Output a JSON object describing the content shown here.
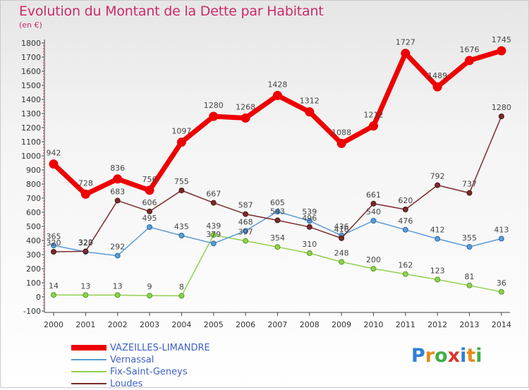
{
  "title": "Evolution du Montant de la Dette par Habitant",
  "subtitle": "(en €)",
  "logo": {
    "text": "Proxiti",
    "colors": [
      "#2f7fd6",
      "#e88a1a",
      "#3fae49",
      "#d8392b",
      "#2f7fd6",
      "#e88a1a",
      "#3fae49"
    ]
  },
  "chart_data": {
    "type": "line",
    "title": "Evolution du Montant de la Dette par Habitant",
    "subtitle": "(en €)",
    "x": [
      "2000",
      "2001",
      "2002",
      "2003",
      "2004",
      "2005",
      "2006",
      "2007",
      "2008",
      "2009",
      "2010",
      "2011",
      "2012",
      "2013",
      "2014"
    ],
    "yticks": [
      "-100",
      "0",
      "100",
      "200",
      "300",
      "400",
      "500",
      "600",
      "700",
      "800",
      "900",
      "1000",
      "1100",
      "1200",
      "1300",
      "1400",
      "1500",
      "1600",
      "1700",
      "1800"
    ],
    "ylim": [
      -100,
      1800
    ],
    "grid": false,
    "legend": "bottom-left",
    "series": [
      {
        "name": "VAZEILLES-LIMANDRE",
        "color": "#ee0000",
        "values": [
          942,
          728,
          836,
          756,
          1097,
          1280,
          1268,
          1428,
          1312,
          1088,
          1212,
          1727,
          1489,
          1676,
          1745
        ],
        "labels": [
          "942",
          "728",
          "836",
          "756",
          "1097",
          "1280",
          "1268",
          "1428",
          "1312",
          "1088",
          "1212",
          "1727",
          "1489",
          "1676",
          "1745"
        ]
      },
      {
        "name": "Vernassal",
        "color": "#5b9bd5",
        "values": [
          365,
          320,
          292,
          495,
          435,
          379,
          468,
          605,
          539,
          436,
          540,
          476,
          412,
          355,
          413
        ],
        "labels": [
          "365",
          "320",
          "292",
          "495",
          "435",
          "379",
          "468",
          "605",
          "539",
          "436",
          "540",
          "476",
          "412",
          "355",
          "413"
        ]
      },
      {
        "name": "Fix-Saint-Geneys",
        "color": "#8fd14f",
        "values": [
          14,
          13,
          13,
          9,
          8,
          439,
          397,
          354,
          310,
          248,
          200,
          162,
          123,
          81,
          36
        ],
        "labels": [
          "14",
          "13",
          "13",
          "9",
          "8",
          "439",
          "397",
          "354",
          "310",
          "248",
          "200",
          "162",
          "123",
          "81",
          "36"
        ]
      },
      {
        "name": "Loudes",
        "color": "#7a2b2b",
        "values": [
          320,
          323,
          683,
          606,
          755,
          667,
          587,
          543,
          496,
          416,
          661,
          620,
          792,
          737,
          1280
        ],
        "labels": [
          "320",
          "323",
          "683",
          "606",
          "755",
          "667",
          "587",
          "543",
          "496",
          "416",
          "661",
          "620",
          "792",
          "737",
          "1280"
        ]
      }
    ]
  }
}
